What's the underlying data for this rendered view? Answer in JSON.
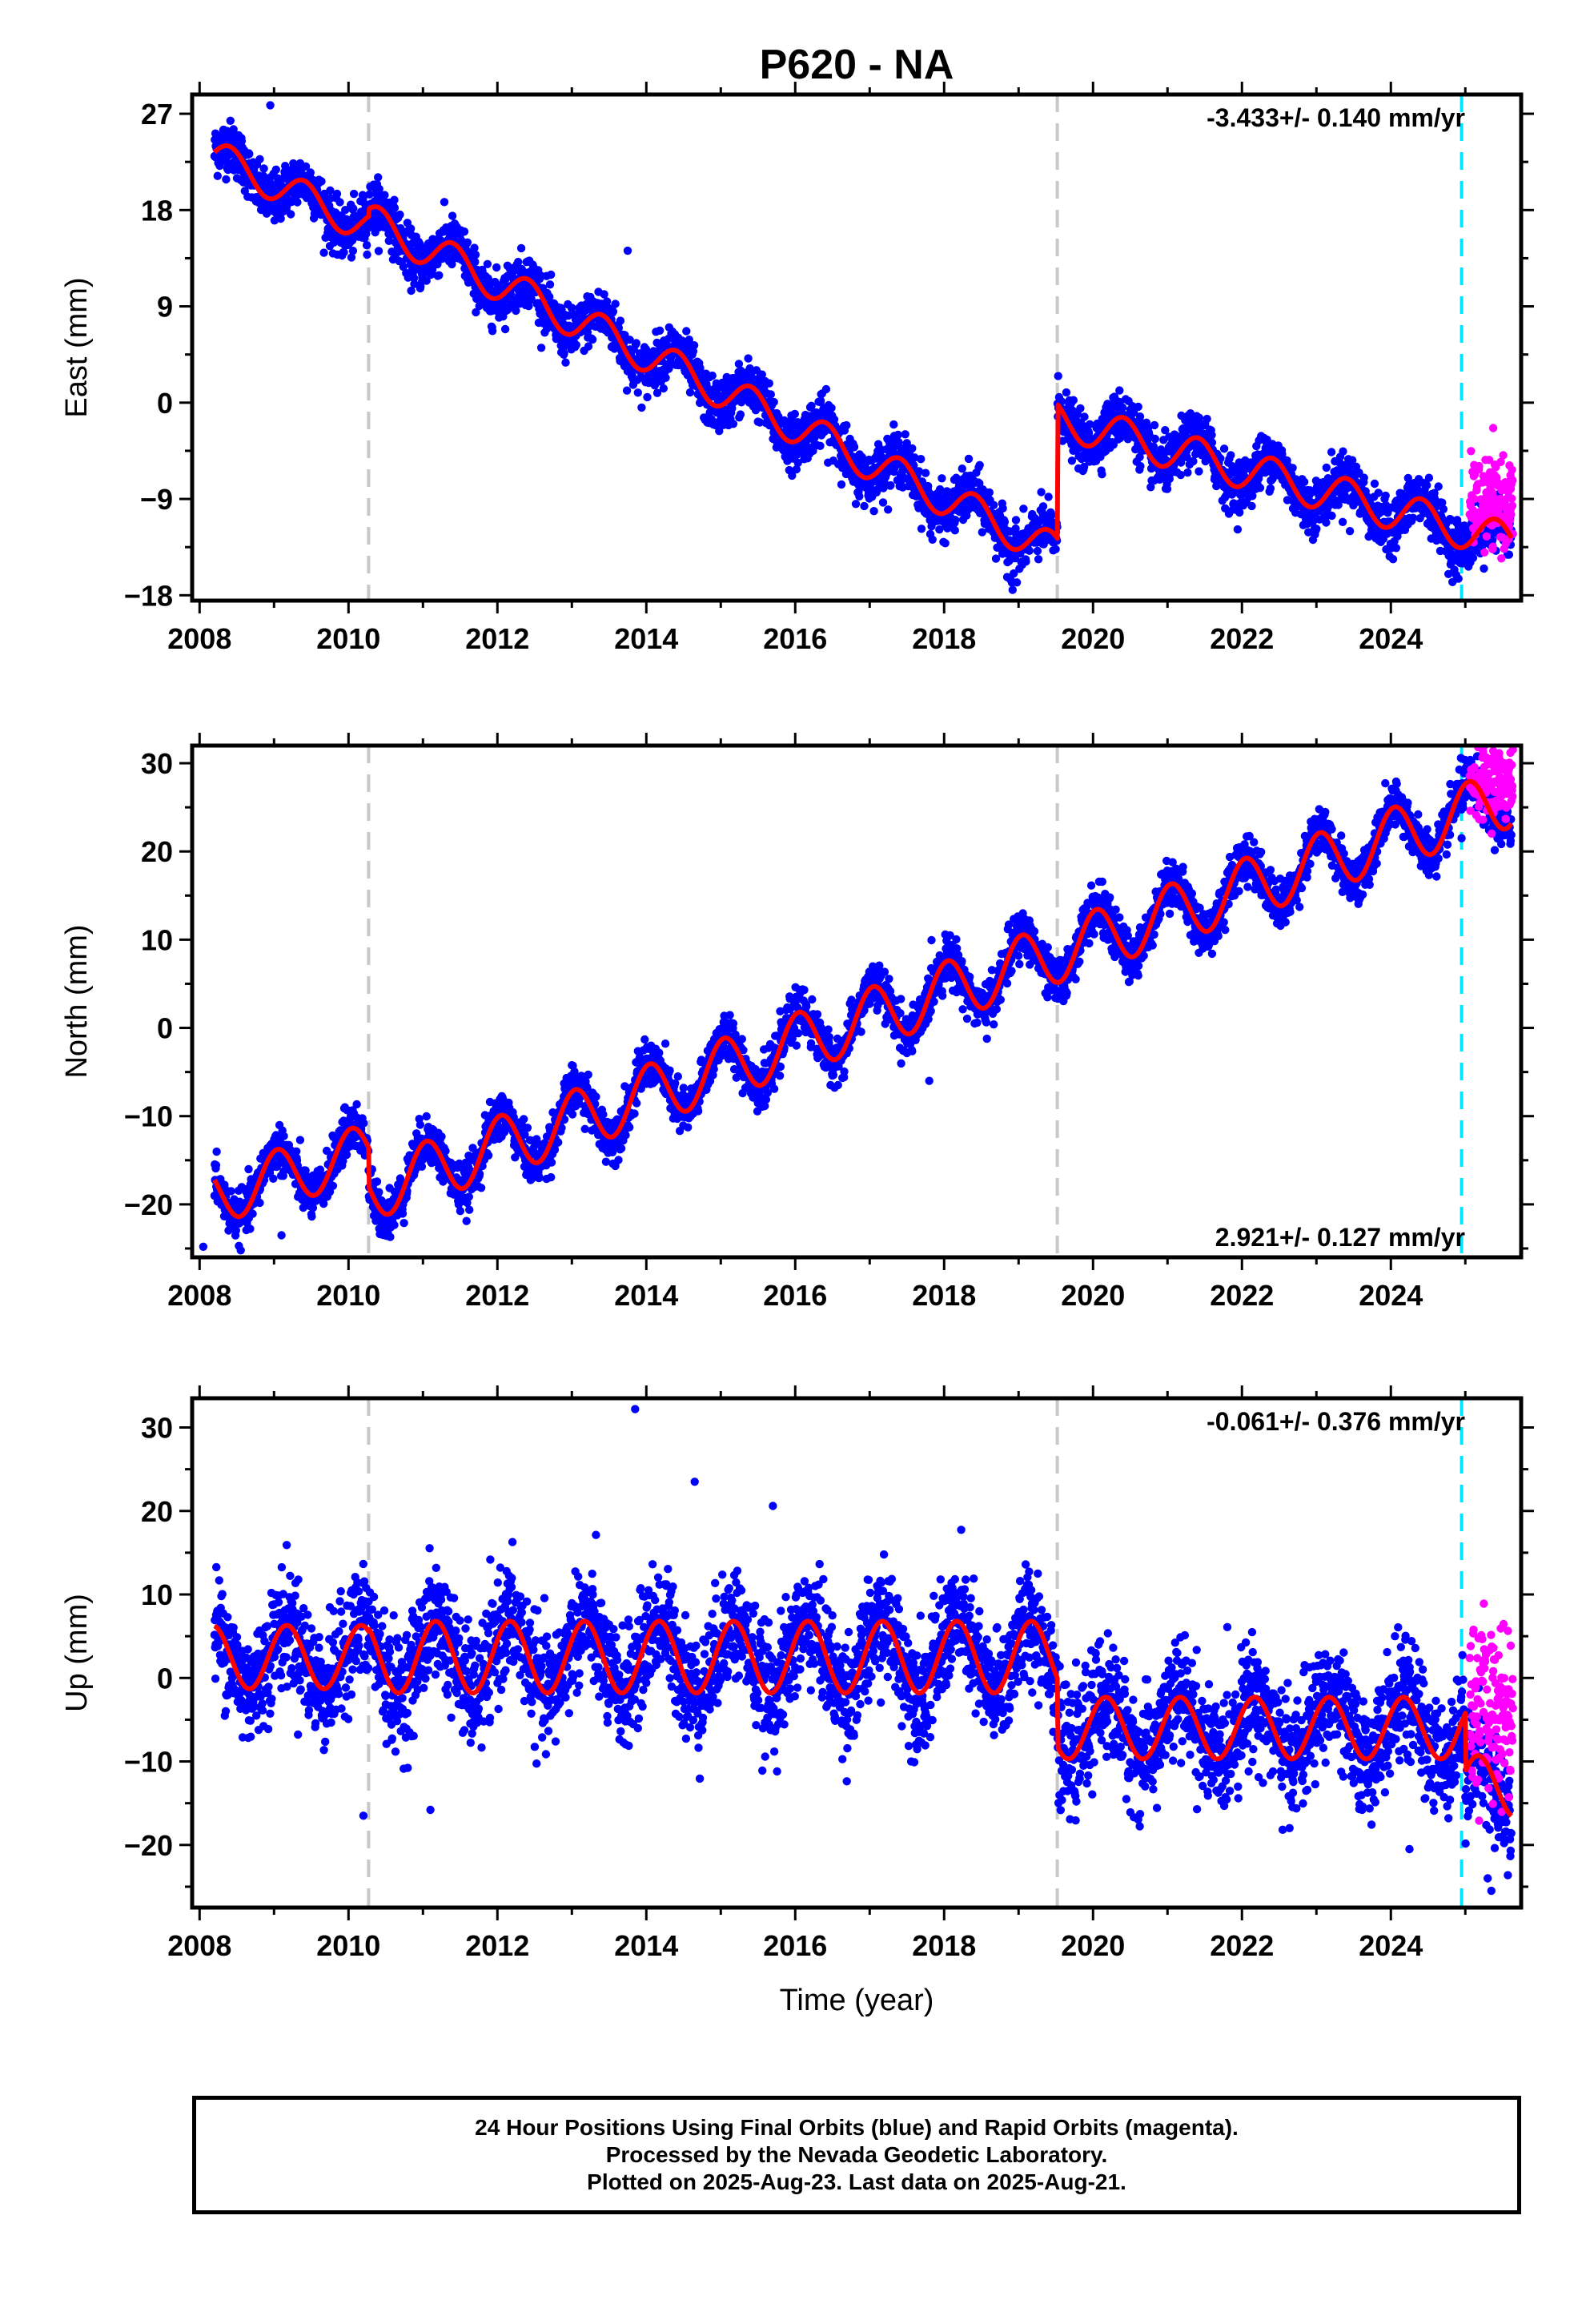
{
  "colors": {
    "final_orbits": "#0000ff",
    "rapid_orbits": "#ff00ff",
    "model": "#ff0000",
    "offset_line": "#c8c8c8",
    "rapid_start_line": "#00e5ff"
  },
  "chart_data": [
    {
      "type": "scatter",
      "title": "P620 - NA",
      "ylabel": "East (mm)",
      "xlabel": "",
      "rate_text": "-3.433+/- 0.140 mm/yr",
      "rate_position": "top-right",
      "xlim": [
        2007.9,
        2025.75
      ],
      "ylim": [
        -18.5,
        28.8
      ],
      "xticks": [
        "2008",
        "2010",
        "2012",
        "2014",
        "2016",
        "2018",
        "2020",
        "2022",
        "2024"
      ],
      "yticks": [
        "27",
        "18",
        "9",
        "0",
        "-9",
        "-18"
      ],
      "ytick_values": [
        27,
        18,
        9,
        0,
        -9,
        -18
      ],
      "offset_lines": [
        2010.27,
        2019.52
      ],
      "rapid_start_line": 2024.95,
      "rapid_range": [
        2025.06,
        2025.64
      ],
      "rapid_level": -9.5,
      "rapid_spread": 2.0,
      "segments": [
        {
          "t0": 2008.2,
          "t1": 2010.27,
          "y0": 23.0,
          "slope": -3.2,
          "amp": 1.6,
          "phase": -1.0
        },
        {
          "t0": 2010.27,
          "t1": 2019.52,
          "y0": 17.0,
          "slope": -3.35,
          "amp": 1.7,
          "phase": -1.0
        },
        {
          "t0": 2019.52,
          "t1": 2025.62,
          "y0": -1.5,
          "slope": -1.9,
          "amp": 1.8,
          "phase": -1.0
        }
      ],
      "noise": 1.2,
      "outliers": [
        [
          2008.95,
          27.8
        ],
        [
          2013.75,
          14.2
        ],
        [
          2018.92,
          -17.5
        ],
        [
          2023.45,
          -12.0
        ],
        [
          2025.25,
          -15.5
        ]
      ]
    },
    {
      "type": "scatter",
      "title": "",
      "ylabel": "North (mm)",
      "xlabel": "",
      "rate_text": "2.921+/- 0.127 mm/yr",
      "rate_position": "bottom-right",
      "xlim": [
        2007.9,
        2025.75
      ],
      "ylim": [
        -26,
        32
      ],
      "xticks": [
        "2008",
        "2010",
        "2012",
        "2014",
        "2016",
        "2018",
        "2020",
        "2022",
        "2024"
      ],
      "yticks": [
        "30",
        "20",
        "10",
        "0",
        "-10",
        "-20"
      ],
      "ytick_values": [
        30,
        20,
        10,
        0,
        -10,
        -20
      ],
      "offset_lines": [
        2010.27,
        2019.52
      ],
      "rapid_start_line": 2024.95,
      "rapid_range": [
        2025.06,
        2025.64
      ],
      "rapid_level": 28.0,
      "rapid_spread": 1.8,
      "segments": [
        {
          "t0": 2008.2,
          "t1": 2010.27,
          "y0": -19.0,
          "slope": 2.4,
          "amp": 3.2,
          "phase": 1.3
        },
        {
          "t0": 2010.27,
          "t1": 2019.52,
          "y0": -18.5,
          "slope": 2.92,
          "amp": 3.4,
          "phase": 1.3
        },
        {
          "t0": 2019.52,
          "t1": 2025.62,
          "y0": 8.5,
          "slope": 2.9,
          "amp": 3.4,
          "phase": 1.3
        }
      ],
      "noise": 1.3,
      "outliers": [
        [
          2008.05,
          -24.8
        ],
        [
          2017.8,
          -6.0
        ],
        [
          2024.95,
          21.5
        ],
        [
          2009.1,
          -23.5
        ]
      ]
    },
    {
      "type": "scatter",
      "title": "",
      "ylabel": "Up (mm)",
      "xlabel": "Time (year)",
      "rate_text": "-0.061+/- 0.376 mm/yr",
      "rate_position": "top-right",
      "xlim": [
        2007.9,
        2025.75
      ],
      "ylim": [
        -27.5,
        33.5
      ],
      "xticks": [
        "2008",
        "2010",
        "2012",
        "2014",
        "2016",
        "2018",
        "2020",
        "2022",
        "2024"
      ],
      "yticks": [
        "30",
        "20",
        "10",
        "0",
        "-10",
        "-20"
      ],
      "ytick_values": [
        30,
        20,
        10,
        0,
        -10,
        -20
      ],
      "offset_lines": [
        2010.27,
        2019.52
      ],
      "rapid_start_line": 2024.95,
      "rapid_range": [
        2025.06,
        2025.64
      ],
      "rapid_level": -3.5,
      "rapid_spread": 5.0,
      "segments": [
        {
          "t0": 2008.2,
          "t1": 2010.27,
          "y0": 2.5,
          "slope": 0.0,
          "amp": 3.8,
          "phase": 0.5
        },
        {
          "t0": 2010.27,
          "t1": 2019.52,
          "y0": 2.5,
          "slope": 0.0,
          "amp": 4.3,
          "phase": 0.5
        },
        {
          "t0": 2019.52,
          "t1": 2025.0,
          "y0": -6.0,
          "slope": 0.0,
          "amp": 3.7,
          "phase": 0.5
        },
        {
          "t0": 2025.0,
          "t1": 2025.62,
          "y0": -13.0,
          "slope": 0.0,
          "amp": 3.7,
          "phase": 0.5
        }
      ],
      "noise": 3.4,
      "outliers": [
        [
          2013.85,
          32.2
        ],
        [
          2014.65,
          23.5
        ],
        [
          2015.7,
          20.6
        ],
        [
          2010.2,
          -16.5
        ],
        [
          2011.1,
          -15.8
        ],
        [
          2025.35,
          -25.5
        ],
        [
          2025.3,
          -24.0
        ],
        [
          2024.25,
          -20.5
        ]
      ]
    }
  ],
  "footer": {
    "line1": "24 Hour Positions Using Final Orbits (blue) and Rapid Orbits (magenta).",
    "line2": "Processed by the Nevada Geodetic Laboratory.",
    "line3": "Plotted on 2025-Aug-23. Last data on 2025-Aug-21."
  }
}
